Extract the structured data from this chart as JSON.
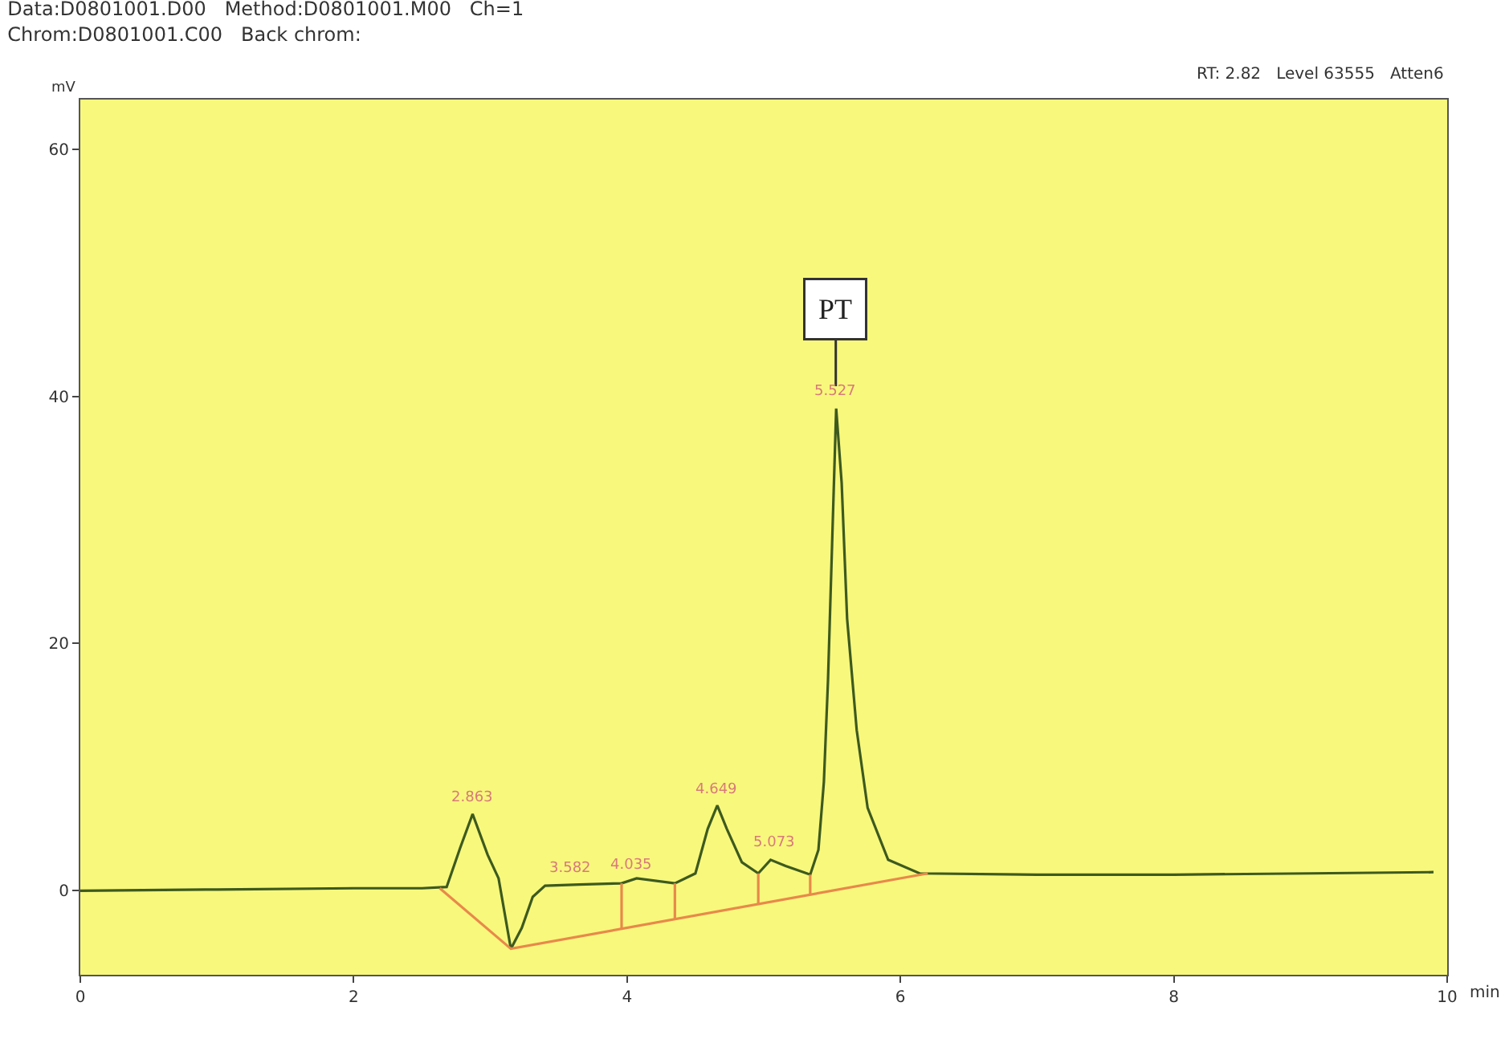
{
  "chart_data": {
    "type": "line",
    "title": "Data:D0801001.D00   Method:D0801001.M00   Ch=1",
    "subtitle": "Chrom:D0801001.C00   Back chrom:",
    "xlabel": "min",
    "ylabel": "mV",
    "xlim": [
      0,
      10
    ],
    "xticks": [
      0,
      2,
      4,
      6,
      8,
      {
        "value": 10,
        "label": "10"
      }
    ],
    "ylim": [
      -6.8,
      64
    ],
    "yticks": [
      0,
      20,
      40,
      60
    ],
    "grid": false,
    "marker": "none",
    "line_style": "solid",
    "series": [
      {
        "color": "#3d5a1e",
        "x": [
          0,
          1,
          2,
          2.5,
          2.68,
          2.78,
          2.87,
          2.98,
          3.06,
          3.15,
          3.23,
          3.31,
          3.4,
          3.65,
          3.96,
          4.07,
          4.35,
          4.5,
          4.59,
          4.66,
          4.73,
          4.84,
          4.96,
          5.05,
          5.16,
          5.34,
          5.4,
          5.44,
          5.47,
          5.5,
          5.53,
          5.57,
          5.61,
          5.68,
          5.76,
          5.91,
          6.14,
          7,
          8,
          9,
          9.9
        ],
        "values": [
          0,
          0.1,
          0.2,
          0.2,
          0.3,
          3.5,
          6.2,
          2.9,
          1.0,
          -4.7,
          -3.0,
          -0.5,
          0.4,
          0.5,
          0.6,
          1.0,
          0.6,
          1.4,
          5.0,
          6.9,
          5.0,
          2.3,
          1.4,
          2.5,
          2.0,
          1.3,
          3.3,
          8.8,
          17,
          28,
          39,
          33,
          22,
          13,
          6.7,
          2.5,
          1.4,
          1.3,
          1.3,
          1.4,
          1.5
        ]
      },
      {
        "color": "#e8894a",
        "x": [
          2.63,
          3.15,
          6.2
        ],
        "values": [
          0.2,
          -4.7,
          1.4
        ]
      },
      {
        "color": "#e8894a",
        "x": [
          3.96,
          3.96
        ],
        "values": [
          0.6,
          -3.1
        ]
      },
      {
        "color": "#e8894a",
        "x": [
          4.35,
          4.35
        ],
        "values": [
          0.6,
          -2.3
        ]
      },
      {
        "color": "#e8894a",
        "x": [
          4.96,
          4.96
        ],
        "values": [
          1.4,
          -1.1
        ]
      },
      {
        "color": "#e8894a",
        "x": [
          5.34,
          5.34
        ],
        "values": [
          1.3,
          -0.3
        ]
      }
    ],
    "annotations": [
      {
        "text": "PT",
        "x": 5.527,
        "y": 39
      },
      {
        "text": "2.863",
        "x": 2.863,
        "y": 6.2
      },
      {
        "text": "3.582",
        "x": 3.582,
        "y": 0.5
      },
      {
        "text": "4.035",
        "x": 4.035,
        "y": 0.8
      },
      {
        "text": "4.649",
        "x": 4.649,
        "y": 6.9
      },
      {
        "text": "5.073",
        "x": 5.073,
        "y": 2.5
      },
      {
        "text": "5.527",
        "x": 5.527,
        "y": 39
      },
      "RT: 2.82   Level 63555   Atten6"
    ]
  }
}
